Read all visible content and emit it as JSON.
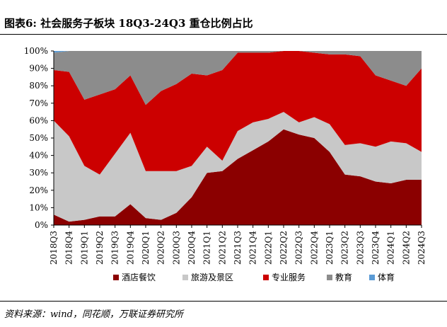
{
  "header": {
    "title": "图表6:  社会服务子板块 18Q3-24Q3 重仓比例占比"
  },
  "footer": {
    "source": "资料来源：wind，同花顺，万联证券研究所"
  },
  "chart_data": {
    "type": "area",
    "stacked": true,
    "x": [
      "2018Q3",
      "2018Q4",
      "2019Q1",
      "2019Q2",
      "2019Q3",
      "2019Q4",
      "2020Q1",
      "2020Q2",
      "2020Q3",
      "2020Q4",
      "2021Q1",
      "2021Q2",
      "2021Q3",
      "2021Q4",
      "2022Q1",
      "2022Q2",
      "2022Q3",
      "2022Q4",
      "2023Q1",
      "2023Q2",
      "2023Q3",
      "2023Q4",
      "2024Q1",
      "2024Q2",
      "2024Q3"
    ],
    "y_ticks": [
      "0%",
      "10%",
      "20%",
      "30%",
      "40%",
      "50%",
      "60%",
      "70%",
      "80%",
      "90%",
      "100%"
    ],
    "ylim": [
      0,
      100
    ],
    "grid": false,
    "legend_position": "bottom",
    "series": [
      {
        "name": "酒店餐饮",
        "color": "#8B0000",
        "values": [
          6,
          2,
          3,
          5,
          5,
          12,
          4,
          3,
          7,
          16,
          30,
          31,
          38,
          43,
          48,
          55,
          52,
          50,
          42,
          29,
          28,
          25,
          24,
          26,
          26
        ]
      },
      {
        "name": "旅游及景区",
        "color": "#C8C8C8",
        "values": [
          54,
          49,
          31,
          24,
          36,
          41,
          27,
          28,
          24,
          18,
          15,
          6,
          16,
          16,
          13,
          10,
          7,
          12,
          16,
          17,
          19,
          20,
          24,
          21,
          16
        ]
      },
      {
        "name": "专业服务",
        "color": "#CC0000",
        "values": [
          29,
          37,
          38,
          46,
          37,
          33,
          38,
          46,
          50,
          53,
          41,
          52,
          45,
          40,
          38,
          35,
          41,
          37,
          40,
          52,
          50,
          41,
          35,
          33,
          48
        ]
      },
      {
        "name": "教育",
        "color": "#8C8C8C",
        "values": [
          10,
          12,
          28,
          25,
          22,
          14,
          31,
          23,
          19,
          13,
          14,
          11,
          1,
          1,
          1,
          0,
          0,
          1,
          2,
          2,
          3,
          14,
          17,
          20,
          10
        ]
      },
      {
        "name": "体育",
        "color": "#5B9BD5",
        "values": [
          1,
          0,
          0,
          0,
          0,
          0,
          0,
          0,
          0,
          0,
          0,
          0,
          0,
          0,
          0,
          0,
          0,
          0,
          0,
          0,
          0,
          0,
          0,
          0,
          0
        ]
      }
    ]
  }
}
